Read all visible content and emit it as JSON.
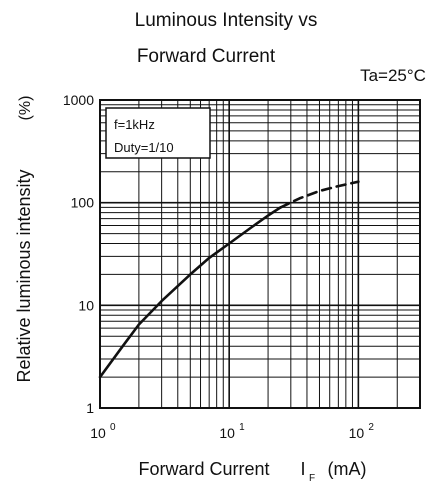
{
  "chart_data": {
    "type": "line",
    "title": "Luminous Intensity vs",
    "subtitle": "Forward Current",
    "condition": "Ta=25°C",
    "xlabel": "Forward Current",
    "xlabel_symbol": "I",
    "xlabel_sub": "F",
    "xlabel_unit": "(mA)",
    "ylabel": "Relative luminous intensity",
    "ylabel_unit": "(%)",
    "x_scale": "log",
    "y_scale": "log",
    "xlim": [
      1,
      300
    ],
    "ylim": [
      1,
      1000
    ],
    "x_ticks": [
      {
        "value": 1,
        "base": "10",
        "exp": "0"
      },
      {
        "value": 10,
        "base": "10",
        "exp": "1"
      },
      {
        "value": 100,
        "base": "10",
        "exp": "2"
      }
    ],
    "y_ticks": [
      {
        "value": 1,
        "label": "1"
      },
      {
        "value": 10,
        "label": "10"
      },
      {
        "value": 100,
        "label": "100"
      },
      {
        "value": 1000,
        "label": "1000"
      }
    ],
    "grid": true,
    "legend_box": [
      "f=1kHz",
      "Duty=1/10"
    ],
    "series": [
      {
        "style": "solid",
        "x": [
          1,
          1.5,
          2,
          3,
          5,
          7,
          10,
          15,
          20,
          25
        ],
        "y": [
          2.0,
          4.0,
          6.5,
          11,
          20,
          29,
          40,
          58,
          75,
          90
        ]
      },
      {
        "style": "dashed",
        "x": [
          25,
          35,
          50,
          70,
          100
        ],
        "y": [
          90,
          110,
          130,
          145,
          160
        ]
      }
    ]
  }
}
